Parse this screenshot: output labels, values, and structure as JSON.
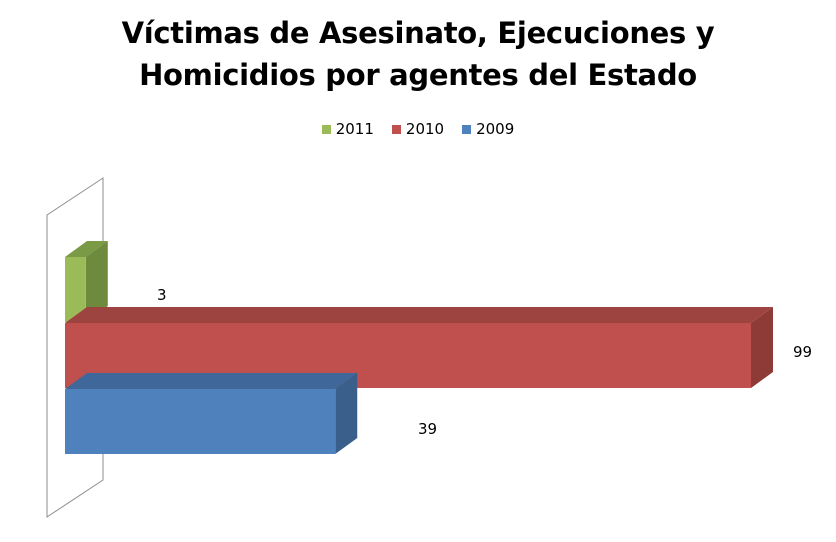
{
  "chart_data": {
    "type": "bar",
    "orientation": "horizontal-3d",
    "title_lines": [
      "Víctimas de Asesinato, Ejecuciones y",
      "Homicidios por agentes del Estado"
    ],
    "categories": [
      "2011",
      "2010",
      "2009"
    ],
    "values": [
      3,
      99,
      39
    ],
    "colors": [
      "#9BBB59",
      "#C0504D",
      "#4F81BD"
    ],
    "side_colors": [
      "#6E8B3D",
      "#8E3B38",
      "#3A5F8B"
    ],
    "top_colors": [
      "#7A9A45",
      "#9E4440",
      "#40679A"
    ],
    "legend": {
      "position": "top",
      "items": [
        {
          "label": "2011",
          "color": "#9BBB59"
        },
        {
          "label": "2010",
          "color": "#C0504D"
        },
        {
          "label": "2009",
          "color": "#4F81BD"
        }
      ]
    },
    "xlim": [
      0,
      99
    ],
    "grid": false,
    "axis_tick_labels_shown": false
  }
}
